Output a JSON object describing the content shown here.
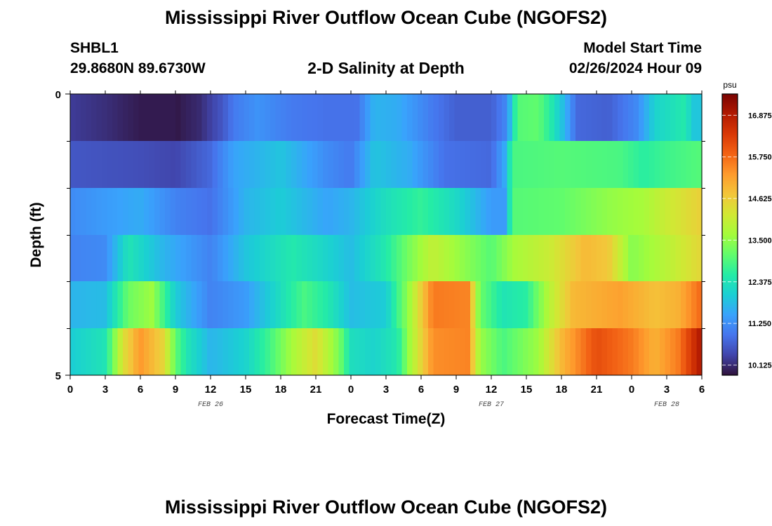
{
  "header": {
    "title": "Mississippi River Outflow Ocean Cube (NGOFS2)",
    "station": "SHBL1",
    "coords": "29.8680N  89.6730W",
    "subtitle": "2-D Salinity at Depth",
    "start_label": "Model Start Time",
    "start_value": "02/26/2024 Hour 09"
  },
  "footer": {
    "title": "Mississippi River Outflow Ocean Cube (NGOFS2)"
  },
  "chart_data": {
    "type": "heatmap",
    "title": "2-D Salinity at Depth",
    "xlabel": "Forecast Time(Z)",
    "ylabel": "Depth (ft)",
    "x_tick_labels": [
      "0",
      "3",
      "6",
      "9",
      "12",
      "15",
      "18",
      "21",
      "0",
      "3",
      "6",
      "9",
      "12",
      "15",
      "18",
      "21",
      "0",
      "3",
      "6"
    ],
    "x_range_hours": [
      0,
      54
    ],
    "date_labels": [
      {
        "text": "FEB 26",
        "hour": 12
      },
      {
        "text": "FEB 27",
        "hour": 36
      },
      {
        "text": "FEB 28",
        "hour": 51
      }
    ],
    "y_tick_labels": [
      "0",
      "5"
    ],
    "y_range": [
      0,
      5
    ],
    "depth_levels": 6,
    "colorbar": {
      "unit": "psu",
      "min": 9.85,
      "max": 17.45,
      "labels": [
        "16.875",
        "15.750",
        "14.625",
        "13.500",
        "12.375",
        "11.250",
        "10.125"
      ],
      "label_values": [
        16.875,
        15.75,
        14.625,
        13.5,
        12.375,
        11.25,
        10.125
      ],
      "colormap": [
        "#30123b",
        "#4145ab",
        "#4675ed",
        "#39a2fc",
        "#1bcfd4",
        "#24eca6",
        "#61fc6c",
        "#a4fc3b",
        "#d1e834",
        "#f3c63a",
        "#fe9b2d",
        "#f36315",
        "#d93806",
        "#b11901",
        "#7a0403"
      ]
    },
    "rows": [
      {
        "depth_level": 1,
        "knots": [
          [
            0,
            10.3
          ],
          [
            3,
            10.15
          ],
          [
            6,
            9.95
          ],
          [
            8.8,
            9.95
          ],
          [
            9,
            9.85
          ],
          [
            9.3,
            9.95
          ],
          [
            11,
            10.1
          ],
          [
            13,
            10.6
          ],
          [
            14,
            11.0
          ],
          [
            16,
            11.3
          ],
          [
            19,
            11.0
          ],
          [
            22,
            10.9
          ],
          [
            24.5,
            10.9
          ],
          [
            26,
            11.7
          ],
          [
            28,
            11.6
          ],
          [
            31,
            11.0
          ],
          [
            33,
            10.7
          ],
          [
            36,
            10.7
          ],
          [
            37.4,
            11.2
          ],
          [
            37.8,
            12.3
          ],
          [
            38.3,
            13.0
          ],
          [
            40,
            13.1
          ],
          [
            41,
            12.6
          ],
          [
            42.3,
            11.7
          ],
          [
            43.3,
            10.8
          ],
          [
            46,
            10.7
          ],
          [
            48.5,
            11.2
          ],
          [
            50,
            12.1
          ],
          [
            52.5,
            12.5
          ],
          [
            53.5,
            11.8
          ],
          [
            54,
            12.0
          ]
        ]
      },
      {
        "depth_level": 2,
        "knots": [
          [
            0,
            10.6
          ],
          [
            6,
            10.5
          ],
          [
            9,
            10.4
          ],
          [
            12,
            10.8
          ],
          [
            14,
            11.5
          ],
          [
            18,
            11.9
          ],
          [
            22,
            11.2
          ],
          [
            24,
            11.0
          ],
          [
            26,
            11.9
          ],
          [
            29,
            11.6
          ],
          [
            32,
            10.9
          ],
          [
            36,
            10.8
          ],
          [
            37.2,
            11.6
          ],
          [
            37.8,
            12.9
          ],
          [
            42,
            13.0
          ],
          [
            47,
            12.9
          ],
          [
            49,
            12.6
          ],
          [
            51,
            12.8
          ],
          [
            54,
            13.0
          ]
        ]
      },
      {
        "depth_level": 3,
        "knots": [
          [
            0,
            11.2
          ],
          [
            6,
            11.6
          ],
          [
            9,
            11.1
          ],
          [
            12,
            10.9
          ],
          [
            15,
            11.7
          ],
          [
            18,
            12.0
          ],
          [
            22,
            11.5
          ],
          [
            24,
            11.7
          ],
          [
            27,
            12.3
          ],
          [
            30,
            12.7
          ],
          [
            33,
            12.2
          ],
          [
            36,
            11.4
          ],
          [
            37.2,
            11.4
          ],
          [
            37.8,
            13.0
          ],
          [
            42,
            13.1
          ],
          [
            46,
            13.5
          ],
          [
            49,
            13.7
          ],
          [
            51,
            14.1
          ],
          [
            54,
            14.6
          ]
        ]
      },
      {
        "depth_level": 4,
        "knots": [
          [
            0,
            11.1
          ],
          [
            3,
            11.2
          ],
          [
            5,
            12.4
          ],
          [
            8,
            11.7
          ],
          [
            12,
            11.1
          ],
          [
            15,
            11.9
          ],
          [
            19,
            12.5
          ],
          [
            22,
            12.1
          ],
          [
            24,
            11.8
          ],
          [
            27,
            12.5
          ],
          [
            29,
            13.3
          ],
          [
            31,
            14.0
          ],
          [
            33,
            13.6
          ],
          [
            36,
            13.0
          ],
          [
            38,
            13.7
          ],
          [
            41,
            14.1
          ],
          [
            44,
            14.9
          ],
          [
            46,
            14.7
          ],
          [
            48,
            13.4
          ],
          [
            51,
            13.9
          ],
          [
            54,
            14.5
          ]
        ]
      },
      {
        "depth_level": 5,
        "knots": [
          [
            0,
            11.7
          ],
          [
            3,
            11.8
          ],
          [
            5,
            13.2
          ],
          [
            7,
            13.6
          ],
          [
            9,
            12.0
          ],
          [
            12,
            11.1
          ],
          [
            15,
            11.4
          ],
          [
            18,
            12.3
          ],
          [
            20,
            12.9
          ],
          [
            22,
            12.5
          ],
          [
            24,
            11.8
          ],
          [
            27,
            12.0
          ],
          [
            29,
            13.6
          ],
          [
            31,
            15.6
          ],
          [
            34,
            15.5
          ],
          [
            35,
            13.2
          ],
          [
            37,
            12.4
          ],
          [
            39,
            12.6
          ],
          [
            41,
            13.9
          ],
          [
            43,
            14.9
          ],
          [
            47,
            15.2
          ],
          [
            50,
            14.8
          ],
          [
            52,
            15.0
          ],
          [
            54,
            15.8
          ]
        ]
      },
      {
        "depth_level": 6,
        "knots": [
          [
            0,
            12.0
          ],
          [
            3,
            12.4
          ],
          [
            4.5,
            14.3
          ],
          [
            6,
            15.3
          ],
          [
            8,
            14.5
          ],
          [
            9,
            13.1
          ],
          [
            10,
            12.4
          ],
          [
            12,
            11.7
          ],
          [
            15,
            12.1
          ],
          [
            17,
            12.8
          ],
          [
            19,
            13.7
          ],
          [
            21,
            14.4
          ],
          [
            23,
            13.3
          ],
          [
            24,
            12.3
          ],
          [
            26,
            12.1
          ],
          [
            28,
            12.5
          ],
          [
            29,
            13.6
          ],
          [
            31,
            15.4
          ],
          [
            34,
            15.5
          ],
          [
            35,
            13.6
          ],
          [
            37,
            12.9
          ],
          [
            40,
            13.6
          ],
          [
            42,
            14.9
          ],
          [
            45,
            16.1
          ],
          [
            48,
            15.6
          ],
          [
            50,
            15.0
          ],
          [
            52,
            15.6
          ],
          [
            54,
            17.0
          ]
        ]
      }
    ]
  }
}
